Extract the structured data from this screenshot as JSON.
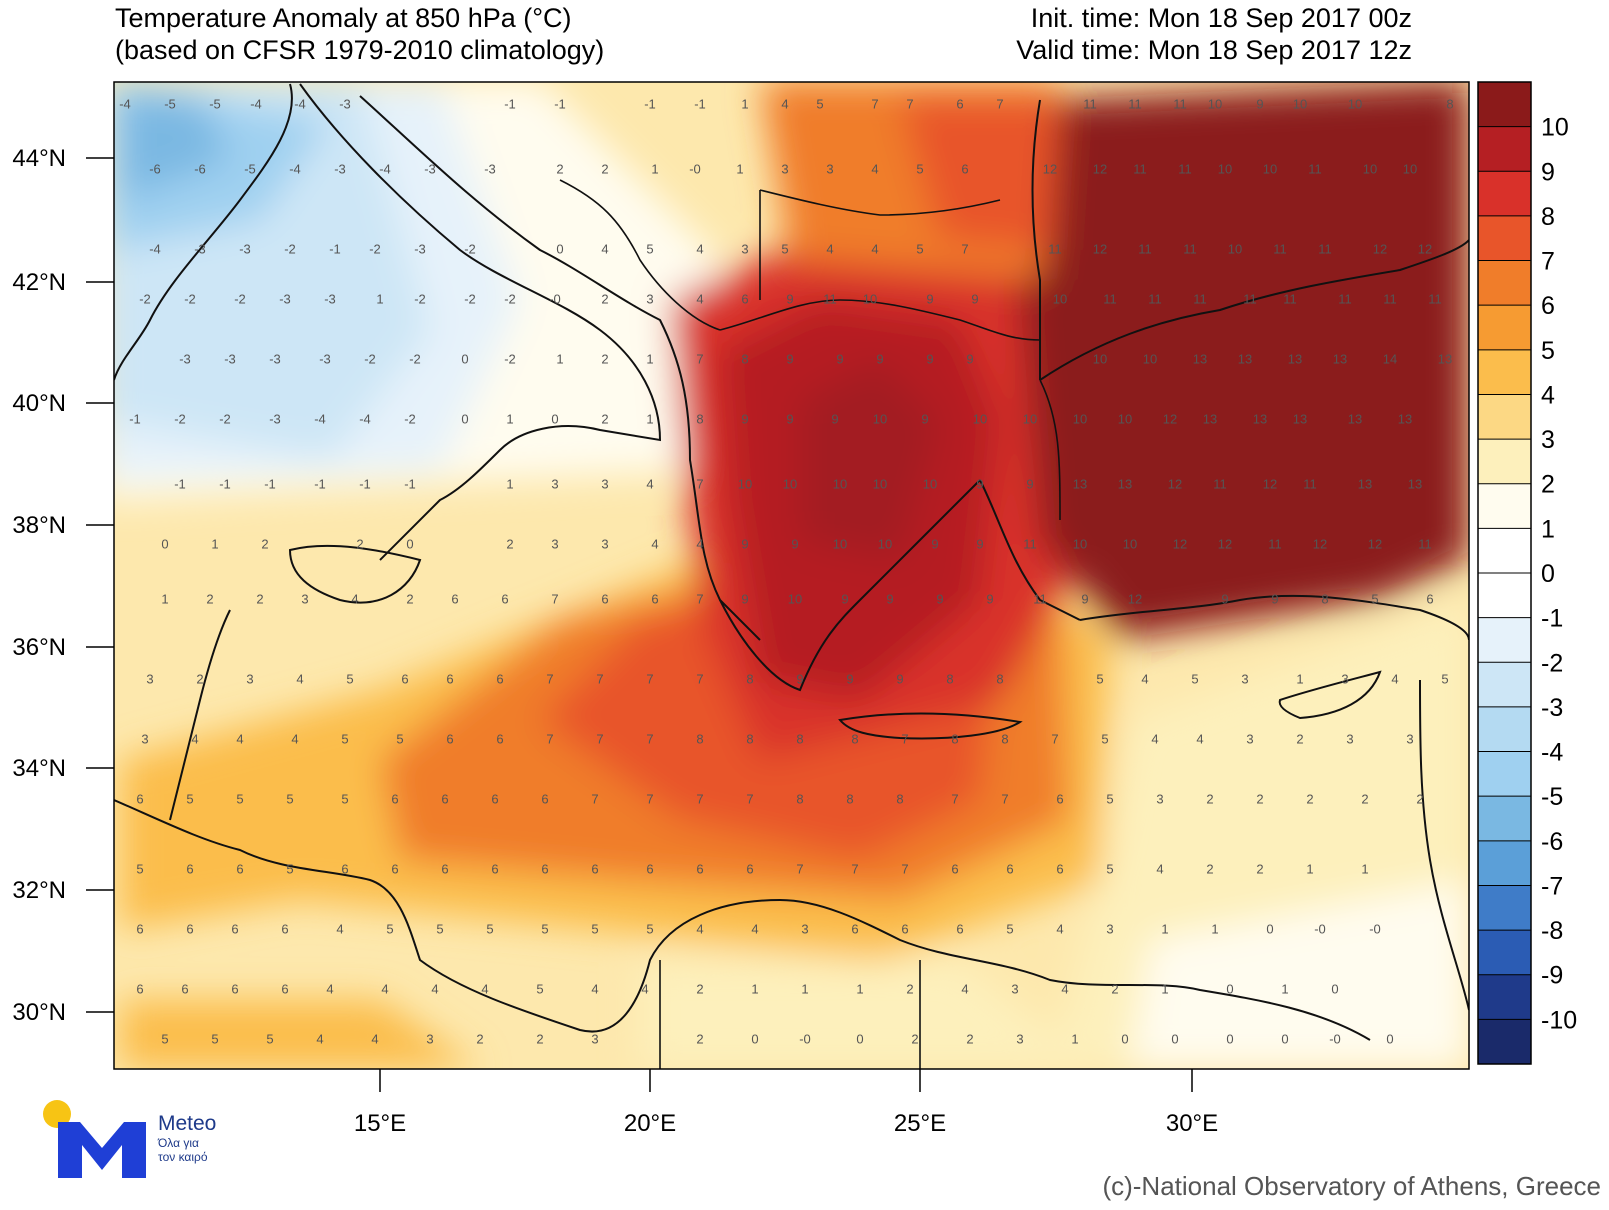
{
  "header": {
    "title_line1": "Temperature Anomaly at 850 hPa (°C)",
    "title_line2": "(based on CFSR 1979-2010 climatology)",
    "init_time": "Init. time: Mon 18 Sep 2017 00z",
    "valid_time": "Valid time: Mon 18 Sep 2017 12z"
  },
  "map": {
    "lat_labels": [
      "44°N",
      "42°N",
      "40°N",
      "38°N",
      "36°N",
      "34°N",
      "32°N",
      "30°N"
    ],
    "lon_labels": [
      "15°E",
      "20°E",
      "25°E",
      "30°E"
    ],
    "colorbar_labels": [
      "10",
      "9",
      "8",
      "7",
      "6",
      "5",
      "4",
      "3",
      "2",
      "1",
      "0",
      "-1",
      "-2",
      "-3",
      "-4",
      "-5",
      "-6",
      "-7",
      "-8",
      "-9",
      "-10"
    ],
    "colorbar_colors": [
      "#8b1a1a",
      "#b51f23",
      "#d9312a",
      "#e8552a",
      "#f07d2a",
      "#f69b32",
      "#fbbd4c",
      "#fcd884",
      "#fdf0bc",
      "#fffcef",
      "#ffffff",
      "#ffffff",
      "#e6f2fa",
      "#cde6f6",
      "#b4daf2",
      "#9fd0f0",
      "#7ab8e2",
      "#5b9fd8",
      "#3f7cc8",
      "#2b5cb4",
      "#1f3a8a",
      "#1a2a6a"
    ]
  },
  "logo": {
    "name": "Meteo",
    "tagline1": "Όλα για",
    "tagline2": "τον καιρό"
  },
  "credit": "(c)-National Observatory of Athens, Greece"
}
